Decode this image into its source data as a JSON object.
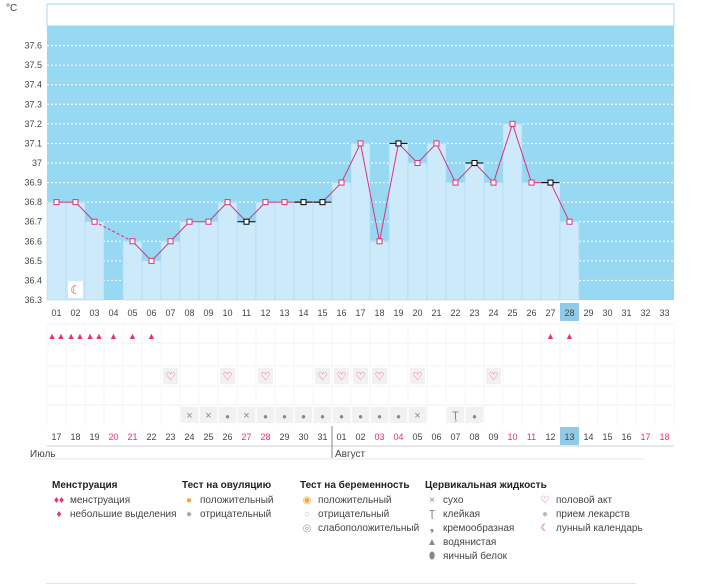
{
  "chart_data": {
    "type": "line",
    "ylabel": "°C",
    "ylim": [
      36.3,
      37.7
    ],
    "y_ticks": [
      "36.3",
      "36.4",
      "36.5",
      "36.6",
      "36.7",
      "36.8",
      "36.9",
      "37",
      "37.1",
      "37.2",
      "37.3",
      "37.4",
      "37.5",
      "37.6"
    ],
    "cycle_days": [
      "01",
      "02",
      "03",
      "04",
      "05",
      "06",
      "07",
      "08",
      "09",
      "10",
      "11",
      "12",
      "13",
      "14",
      "15",
      "16",
      "17",
      "18",
      "19",
      "20",
      "21",
      "22",
      "23",
      "24",
      "25",
      "26",
      "27",
      "28",
      "29",
      "30",
      "31",
      "32",
      "33"
    ],
    "temperatures": [
      36.8,
      36.8,
      36.7,
      null,
      36.6,
      36.5,
      36.6,
      36.7,
      36.7,
      36.8,
      36.7,
      36.8,
      36.8,
      36.8,
      36.8,
      36.9,
      37.1,
      36.6,
      37.1,
      37.0,
      37.1,
      36.9,
      37.0,
      36.9,
      37.2,
      36.9,
      36.9,
      36.7,
      null,
      null,
      null,
      null,
      null
    ],
    "flagged_days": [
      "11",
      "14",
      "15",
      "19",
      "23",
      "27"
    ],
    "current_cycle_day": "28",
    "calendar_dates": [
      "17",
      "18",
      "19",
      "20",
      "21",
      "22",
      "23",
      "24",
      "25",
      "26",
      "27",
      "28",
      "29",
      "30",
      "31",
      "01",
      "02",
      "03",
      "04",
      "05",
      "06",
      "07",
      "08",
      "09",
      "10",
      "11",
      "12",
      "13",
      "14",
      "15",
      "16",
      "17",
      "18"
    ],
    "weekend_dates": [
      "20",
      "21",
      "27",
      "28",
      "03",
      "04",
      "10",
      "11",
      "17",
      "18"
    ],
    "weekend_indexes": [
      3,
      4,
      10,
      11,
      17,
      18,
      24,
      25,
      31,
      32
    ],
    "today_date": "13",
    "months": [
      {
        "name": "Июль",
        "start_index": 0
      },
      {
        "name": "Август",
        "start_index": 15
      }
    ],
    "menstruation": [
      "heavy",
      "heavy",
      "heavy",
      "light",
      "light",
      "light",
      null,
      null,
      null,
      null,
      null,
      null,
      null,
      null,
      null,
      null,
      null,
      null,
      null,
      null,
      null,
      null,
      null,
      null,
      null,
      null,
      "light",
      "light",
      null,
      null,
      null,
      null,
      null
    ],
    "intercourse": [
      null,
      null,
      null,
      null,
      null,
      null,
      "heart",
      null,
      null,
      "heart",
      null,
      "heart",
      null,
      null,
      "heart",
      "heart",
      "heart",
      "heart",
      null,
      "heart",
      null,
      null,
      null,
      "heart",
      null,
      null,
      null,
      null,
      null,
      null,
      null,
      null,
      null
    ],
    "cervical_fluid": [
      null,
      null,
      null,
      null,
      null,
      null,
      null,
      "dry",
      "dry",
      "watery",
      "dry",
      "watery",
      "watery",
      "watery",
      "watery",
      "watery",
      "watery",
      "watery",
      "watery",
      "dry",
      null,
      "sticky",
      "watery",
      null,
      null,
      null,
      null,
      null,
      null,
      null,
      null,
      null,
      null
    ],
    "moon_day": "02"
  },
  "legend": {
    "menstruation": {
      "title": "Менструация",
      "items": [
        "менструация",
        "небольшие выделения"
      ]
    },
    "ovulation_test": {
      "title": "Тест на овуляцию",
      "items": [
        "положительный",
        "отрицательный"
      ]
    },
    "pregnancy_test": {
      "title": "Тест на беременность",
      "items": [
        "положительный",
        "отрицательный",
        "слабоположительный"
      ]
    },
    "cervical_fluid": {
      "title": "Цервикальная жидкость",
      "items": [
        "сухо",
        "клейкая",
        "кремообразная",
        "водянистая",
        "яичный белок"
      ]
    },
    "other": {
      "items": [
        "половой акт",
        "прием лекарств",
        "лунный календарь"
      ]
    }
  },
  "colors": {
    "sky": "#97d8f2",
    "bar": "#cdeafa",
    "bar_border": "#a8d5ee",
    "line": "#e0307a",
    "accent_pink": "#e8316f",
    "today": "#8fcbe6"
  },
  "icons": {
    "heavy": "blood-drops-icon",
    "light": "blood-drop-icon",
    "heart": "heart-icon",
    "dry": "cross-icon",
    "sticky": "sticky-icon",
    "watery": "drop-icon",
    "moon": "moon-icon"
  }
}
